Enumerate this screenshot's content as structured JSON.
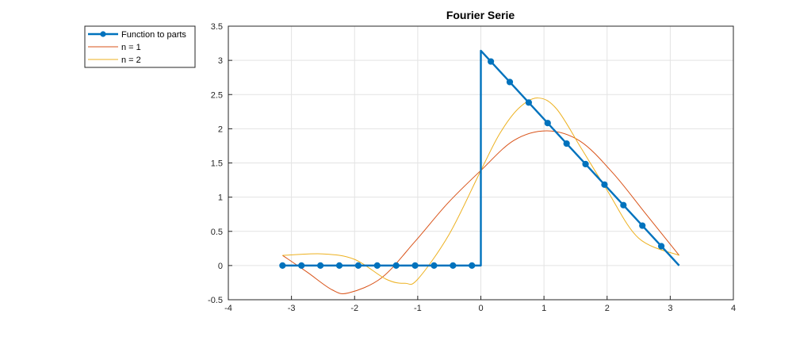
{
  "chart_data": {
    "type": "line",
    "title": "Fourier Serie",
    "xlabel": "",
    "ylabel": "",
    "xlim": [
      -4,
      4
    ],
    "ylim": [
      -0.5,
      3.5
    ],
    "xticks": [
      "-4",
      "-3",
      "-2",
      "-1",
      "0",
      "1",
      "2",
      "3",
      "4"
    ],
    "yticks": [
      "-0.5",
      "0",
      "0.5",
      "1",
      "1.5",
      "2",
      "2.5",
      "3",
      "3.5"
    ],
    "grid": true,
    "legend_position": "outside-top-left",
    "series": [
      {
        "name": "Function to parts",
        "color": "#0072BD",
        "marker": "circle",
        "x": [
          -3.1416,
          -2.8416,
          -2.5416,
          -2.2416,
          -1.9416,
          -1.6416,
          -1.3416,
          -1.0416,
          -0.7416,
          -0.4416,
          -0.1416,
          0,
          0,
          0.1584,
          0.4584,
          0.7584,
          1.0584,
          1.3584,
          1.6584,
          1.9584,
          2.2584,
          2.5584,
          2.8584,
          3.1416
        ],
        "y": [
          0,
          0,
          0,
          0,
          0,
          0,
          0,
          0,
          0,
          0,
          0,
          0,
          3.1416,
          2.9832,
          2.6832,
          2.3832,
          2.0832,
          1.7832,
          1.4832,
          1.1832,
          0.8832,
          0.5832,
          0.2832,
          0
        ],
        "marker_indices": [
          0,
          1,
          2,
          3,
          4,
          5,
          6,
          7,
          8,
          9,
          10,
          13,
          14,
          15,
          16,
          17,
          18,
          19,
          20,
          21,
          22
        ]
      },
      {
        "name": "n = 1",
        "color": "#D95319",
        "x": [
          -3.1416,
          -2.7489,
          -2.3562,
          -2.0944,
          -1.5708,
          -1.0472,
          -0.5236,
          0,
          0.5236,
          1.0472,
          1.5708,
          2.0944,
          2.618,
          3.1416
        ],
        "y": [
          0.1488,
          -0.098,
          -0.355,
          -0.4,
          -0.178,
          0.347,
          0.912,
          1.39,
          1.83,
          1.97,
          1.82,
          1.35,
          0.75,
          0.1488
        ]
      },
      {
        "name": "n = 2",
        "color": "#EDB120",
        "x": [
          -3.1416,
          -2.5,
          -2.0,
          -1.5,
          -1.2,
          -1.0,
          -0.5,
          0,
          0.3,
          0.6,
          0.9,
          1.2,
          1.6,
          2.0,
          2.5,
          3.1416
        ],
        "y": [
          0.1488,
          0.17,
          0.09,
          -0.2,
          -0.26,
          -0.2,
          0.46,
          1.39,
          1.93,
          2.3,
          2.45,
          2.29,
          1.7,
          1.1,
          0.4,
          0.1488
        ]
      }
    ]
  }
}
